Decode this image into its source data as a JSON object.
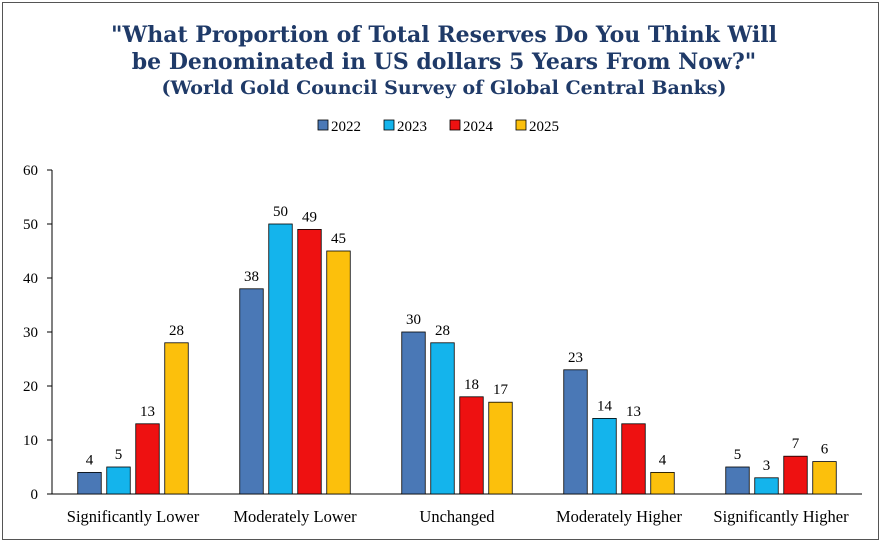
{
  "chart_data": {
    "type": "bar",
    "title_lines": [
      "\"What Proportion of Total Reserves Do You Think Will",
      "be Denominated in US dollars 5 Years From Now?\"",
      "(World Gold Council Survey of Global Central Banks)"
    ],
    "categories": [
      "Significantly Lower",
      "Moderately Lower",
      "Unchanged",
      "Moderately Higher",
      "Significantly Higher"
    ],
    "series": [
      {
        "name": "2022",
        "color": "#4a78b6",
        "values": [
          4,
          38,
          30,
          23,
          5
        ]
      },
      {
        "name": "2023",
        "color": "#14b4ec",
        "values": [
          5,
          50,
          28,
          14,
          3
        ]
      },
      {
        "name": "2024",
        "color": "#ee1111",
        "values": [
          13,
          49,
          18,
          13,
          7
        ]
      },
      {
        "name": "2025",
        "color": "#fcc00c",
        "values": [
          28,
          45,
          17,
          4,
          6
        ]
      }
    ],
    "yticks": [
      "0",
      "10",
      "20",
      "30",
      "40",
      "50",
      "60"
    ],
    "ylim": [
      0,
      60
    ],
    "legend_position": "top-center",
    "grid": false
  }
}
